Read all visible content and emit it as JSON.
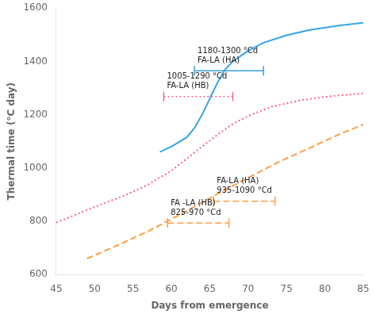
{
  "chart_data": {
    "type": "line",
    "xlabel": "Days from emergence",
    "ylabel": "Thermal time (°C day)",
    "xlim": [
      45,
      85
    ],
    "ylim": [
      600,
      1600
    ],
    "xticks": [
      45,
      50,
      55,
      60,
      65,
      70,
      75,
      80,
      85
    ],
    "yticks": [
      600,
      800,
      1000,
      1200,
      1400,
      1600
    ],
    "grid": false,
    "series": [
      {
        "line_style": "solid",
        "x": [
          58.5,
          60,
          62,
          63,
          64,
          65,
          66,
          67,
          68,
          70,
          72,
          75,
          78,
          82,
          85
        ],
        "values": [
          1060,
          1080,
          1115,
          1150,
          1200,
          1260,
          1320,
          1370,
          1400,
          1440,
          1470,
          1498,
          1518,
          1535,
          1545
        ]
      },
      {
        "line_style": "dotted",
        "x": [
          45,
          48,
          51,
          54,
          57,
          60,
          62,
          64,
          66,
          68,
          70,
          73,
          77,
          81,
          85
        ],
        "values": [
          795,
          830,
          865,
          898,
          938,
          990,
          1035,
          1080,
          1125,
          1165,
          1195,
          1230,
          1255,
          1270,
          1280
        ]
      },
      {
        "line_style": "dashed",
        "x": [
          49,
          53,
          57,
          60,
          63,
          66,
          70,
          74,
          78,
          82,
          85
        ],
        "values": [
          660,
          710,
          763,
          808,
          855,
          902,
          963,
          1023,
          1075,
          1128,
          1163
        ]
      }
    ],
    "brackets": [
      {
        "x1": 63,
        "x2": 72,
        "y": 1365,
        "line_style": "solid",
        "labels": [
          "1180-1300 °Cd",
          "FA-LA (HA)"
        ]
      },
      {
        "x1": 59,
        "x2": 68,
        "y": 1268,
        "line_style": "dotted",
        "labels": [
          "1005-1290 °Cd",
          "FA-LA (HB)"
        ]
      },
      {
        "x1": 65.5,
        "x2": 73.5,
        "y": 875,
        "line_style": "dashed",
        "labels": [
          "FA-LA (HA)",
          "935-1090 °Cd"
        ]
      },
      {
        "x1": 59.5,
        "x2": 67.5,
        "y": 793,
        "line_style": "dashed",
        "labels": [
          "FA -LA (HB)",
          "825-970 °Cd"
        ]
      }
    ]
  }
}
